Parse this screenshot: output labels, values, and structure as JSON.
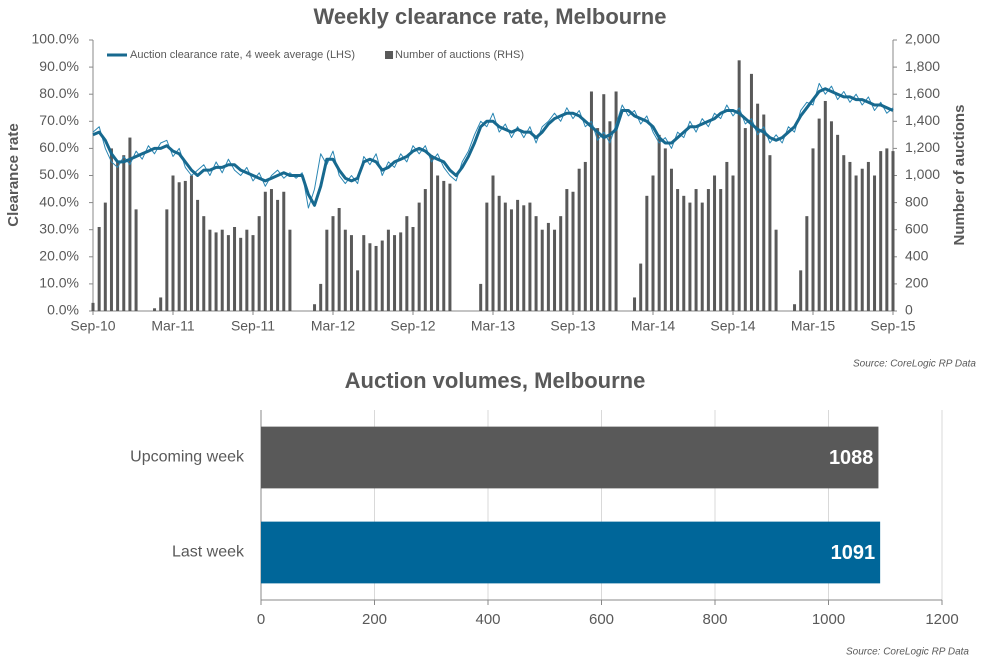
{
  "chart_data": [
    {
      "type": "combo",
      "title": "Weekly clearance rate, Melbourne",
      "y_label": "Clearance rate",
      "y2_label": "Number of auctions",
      "source": "Source: CoreLogic  RP Data",
      "legend": "top-left",
      "categories": [
        "Sep-10",
        null,
        null,
        null,
        null,
        null,
        null,
        null,
        null,
        null,
        null,
        null,
        null,
        "Mar-11",
        null,
        null,
        null,
        null,
        null,
        null,
        null,
        null,
        null,
        null,
        null,
        null,
        "Sep-11",
        null,
        null,
        null,
        null,
        null,
        null,
        null,
        null,
        null,
        null,
        null,
        null,
        "Mar-12",
        null,
        null,
        null,
        null,
        null,
        null,
        null,
        null,
        null,
        null,
        null,
        null,
        "Sep-12",
        null,
        null,
        null,
        null,
        null,
        null,
        null,
        null,
        null,
        null,
        null,
        null,
        "Mar-13",
        null,
        null,
        null,
        null,
        null,
        null,
        null,
        null,
        null,
        null,
        null,
        null,
        "Sep-13",
        null,
        null,
        null,
        null,
        null,
        null,
        null,
        null,
        null,
        null,
        null,
        null,
        "Mar-14",
        null,
        null,
        null,
        null,
        null,
        null,
        null,
        null,
        null,
        null,
        null,
        null,
        "Sep-14",
        null,
        null,
        null,
        null,
        null,
        null,
        null,
        null,
        null,
        null,
        null,
        null,
        "Mar-15",
        null,
        null,
        null,
        null,
        null,
        null,
        null,
        null,
        null,
        null,
        null,
        null,
        "Sep-15"
      ],
      "ylim": [
        0,
        100
      ],
      "yticks": [
        {
          "value": 0,
          "label": "0.0%"
        },
        {
          "value": 10,
          "label": "10.0%"
        },
        {
          "value": 20,
          "label": "20.0%"
        },
        {
          "value": 30,
          "label": "30.0%"
        },
        {
          "value": 40,
          "label": "40.0%"
        },
        {
          "value": 50,
          "label": "50.0%"
        },
        {
          "value": 60,
          "label": "60.0%"
        },
        {
          "value": 70,
          "label": "70.0%"
        },
        {
          "value": 80,
          "label": "80.0%"
        },
        {
          "value": 90,
          "label": "90.0%"
        },
        {
          "value": 100,
          "label": "100.0%"
        }
      ],
      "y2lim": [
        0,
        2000
      ],
      "y2ticks": [
        0,
        200,
        400,
        600,
        800,
        {
          "value": 1000,
          "label": "1,000"
        },
        {
          "value": 1200,
          "label": "1,200"
        },
        {
          "value": 1400,
          "label": "1,400"
        },
        {
          "value": 1600,
          "label": "1,600"
        },
        {
          "value": 1800,
          "label": "1,800"
        },
        {
          "value": 2000,
          "label": "2,000"
        }
      ],
      "series": [
        {
          "name": "Number of auctions (RHS)",
          "type": "bar",
          "axis": "y2",
          "color": "#595959",
          "values": [
            60,
            620,
            800,
            1200,
            1100,
            1150,
            1280,
            750,
            0,
            0,
            20,
            100,
            750,
            1000,
            950,
            960,
            1000,
            820,
            700,
            600,
            580,
            600,
            560,
            620,
            540,
            600,
            560,
            700,
            880,
            900,
            820,
            880,
            600,
            0,
            0,
            0,
            50,
            200,
            600,
            700,
            760,
            600,
            560,
            300,
            560,
            500,
            480,
            520,
            600,
            560,
            580,
            700,
            620,
            800,
            900,
            1150,
            1000,
            960,
            940,
            0,
            0,
            0,
            0,
            200,
            800,
            1000,
            850,
            800,
            750,
            820,
            780,
            800,
            700,
            600,
            650,
            600,
            700,
            900,
            880,
            1050,
            1100,
            1620,
            1350,
            1600,
            1400,
            1620,
            0,
            0,
            100,
            350,
            850,
            1000,
            1300,
            1200,
            1050,
            900,
            850,
            800,
            900,
            800,
            900,
            1000,
            900,
            1100,
            1000,
            1850,
            1350,
            1750,
            1530,
            1450,
            1150,
            600,
            0,
            0,
            50,
            300,
            700,
            1200,
            1420,
            1550,
            1400,
            1300,
            1150,
            1100,
            1000,
            1050,
            1100,
            1000,
            1180,
            1200,
            1180
          ]
        },
        {
          "type": "line",
          "color": "#2a86b3",
          "line_width": 1,
          "values": [
            66,
            68,
            60,
            55,
            53,
            57,
            54,
            59,
            56,
            61,
            58,
            62,
            63,
            57,
            60,
            53,
            50,
            52,
            54,
            50,
            55,
            51,
            56,
            52,
            50,
            53,
            48,
            51,
            46,
            50,
            52,
            49,
            51,
            49,
            51,
            38,
            45,
            58,
            54,
            59,
            50,
            47,
            50,
            47,
            57,
            54,
            58,
            50,
            55,
            53,
            58,
            55,
            61,
            58,
            61,
            55,
            58,
            53,
            50,
            48,
            55,
            59,
            65,
            70,
            68,
            73,
            66,
            69,
            64,
            68,
            64,
            68,
            62,
            68,
            70,
            73,
            70,
            75,
            71,
            74,
            68,
            70,
            63,
            66,
            62,
            69,
            76,
            72,
            74,
            69,
            72,
            66,
            62,
            64,
            60,
            66,
            64,
            70,
            66,
            71,
            68,
            73,
            71,
            76,
            72,
            75,
            69,
            71,
            65,
            68,
            62,
            65,
            62,
            68,
            66,
            74,
            77,
            76,
            84,
            80,
            83,
            78,
            81,
            77,
            80,
            76,
            79,
            74,
            77,
            73,
            75
          ]
        },
        {
          "name": "Auction clearance rate, 4 week average (LHS)",
          "type": "line",
          "color": "#17698f",
          "line_width": 3,
          "values": [
            65,
            66,
            63,
            58,
            55,
            55,
            56,
            57,
            58,
            59,
            60,
            60,
            61,
            59,
            58,
            55,
            52,
            50,
            52,
            52,
            53,
            53,
            54,
            54,
            52,
            51,
            50,
            49,
            48,
            49,
            50,
            51,
            50,
            50,
            50,
            43,
            39,
            46,
            56,
            56,
            52,
            49,
            48,
            49,
            55,
            56,
            55,
            52,
            53,
            55,
            56,
            57,
            59,
            60,
            59,
            57,
            56,
            55,
            52,
            50,
            53,
            57,
            62,
            68,
            70,
            70,
            68,
            67,
            66,
            67,
            66,
            66,
            64,
            66,
            69,
            71,
            72,
            73,
            73,
            72,
            70,
            68,
            66,
            64,
            65,
            67,
            74,
            74,
            72,
            71,
            70,
            68,
            64,
            62,
            62,
            64,
            66,
            68,
            68,
            69,
            70,
            71,
            73,
            74,
            74,
            73,
            71,
            69,
            67,
            66,
            64,
            63,
            64,
            66,
            68,
            72,
            75,
            78,
            81,
            82,
            81,
            80,
            79,
            79,
            78,
            78,
            77,
            76,
            76,
            75,
            74
          ]
        }
      ]
    },
    {
      "type": "barh",
      "title": "Auction volumes, Melbourne",
      "source": "Source: CoreLogic  RP Data",
      "categories": [
        "Upcoming week",
        "Last week"
      ],
      "values": [
        1088,
        1091
      ],
      "colors": [
        "#595959",
        "#006699"
      ],
      "data_labels": true,
      "xlim": [
        0,
        1200
      ],
      "xticks": [
        0,
        200,
        400,
        600,
        800,
        1000,
        1200
      ],
      "grid": true
    }
  ]
}
